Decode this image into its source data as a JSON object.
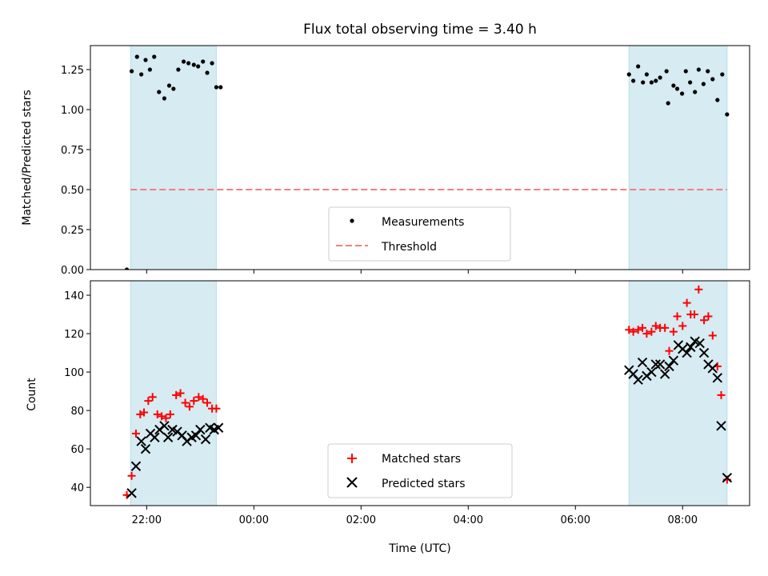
{
  "chart_data": {
    "title": "Flux total observing time = 3.40 h",
    "x_axis": {
      "label": "Time (UTC)",
      "ticks": [
        {
          "value": 22,
          "label": "22:00"
        },
        {
          "value": 24,
          "label": "00:00"
        },
        {
          "value": 26,
          "label": "02:00"
        },
        {
          "value": 28,
          "label": "04:00"
        },
        {
          "value": 30,
          "label": "06:00"
        },
        {
          "value": 32,
          "label": "08:00"
        }
      ],
      "xlim": [
        20.95,
        33.25
      ],
      "unit": "hours after 00:00 UTC of first day"
    },
    "shaded_intervals": [
      [
        21.7,
        23.3
      ],
      [
        31.0,
        32.83
      ]
    ],
    "shade_color": "#add8e6",
    "panels": [
      {
        "type": "scatter",
        "ylabel": "Matched/Predicted stars",
        "ylim": [
          0,
          1.4
        ],
        "yticks": [
          {
            "value": 0,
            "label": "0.00"
          },
          {
            "value": 0.25,
            "label": "0.25"
          },
          {
            "value": 0.5,
            "label": "0.50"
          },
          {
            "value": 0.75,
            "label": "0.75"
          },
          {
            "value": 1.0,
            "label": "1.00"
          },
          {
            "value": 1.25,
            "label": "1.25"
          }
        ],
        "legend": {
          "placement": "lower center",
          "entries": [
            "Measurements",
            "Threshold"
          ]
        },
        "series": [
          {
            "name": "Measurements",
            "marker": "dot",
            "color": "#000000",
            "points": [
              [
                21.63,
                0.0
              ],
              [
                21.72,
                1.24
              ],
              [
                21.82,
                1.33
              ],
              [
                21.9,
                1.22
              ],
              [
                21.98,
                1.31
              ],
              [
                22.06,
                1.25
              ],
              [
                22.14,
                1.33
              ],
              [
                22.23,
                1.11
              ],
              [
                22.33,
                1.07
              ],
              [
                22.42,
                1.15
              ],
              [
                22.5,
                1.13
              ],
              [
                22.59,
                1.25
              ],
              [
                22.69,
                1.3
              ],
              [
                22.78,
                1.29
              ],
              [
                22.88,
                1.28
              ],
              [
                22.96,
                1.27
              ],
              [
                23.05,
                1.3
              ],
              [
                23.13,
                1.23
              ],
              [
                23.22,
                1.29
              ],
              [
                23.3,
                1.14
              ],
              [
                23.38,
                1.14
              ],
              [
                31.0,
                1.22
              ],
              [
                31.08,
                1.18
              ],
              [
                31.17,
                1.27
              ],
              [
                31.26,
                1.17
              ],
              [
                31.33,
                1.22
              ],
              [
                31.42,
                1.17
              ],
              [
                31.5,
                1.18
              ],
              [
                31.58,
                1.2
              ],
              [
                31.7,
                1.24
              ],
              [
                31.73,
                1.04
              ],
              [
                31.83,
                1.15
              ],
              [
                31.9,
                1.13
              ],
              [
                31.99,
                1.1
              ],
              [
                32.06,
                1.24
              ],
              [
                32.14,
                1.17
              ],
              [
                32.23,
                1.11
              ],
              [
                32.3,
                1.25
              ],
              [
                32.39,
                1.16
              ],
              [
                32.47,
                1.24
              ],
              [
                32.56,
                1.19
              ],
              [
                32.65,
                1.06
              ],
              [
                32.74,
                1.22
              ],
              [
                32.83,
                0.97
              ]
            ]
          },
          {
            "name": "Threshold",
            "marker": "dashed-line",
            "color": "#f08080",
            "x_range": [
              21.7,
              32.83
            ],
            "y": 0.5
          }
        ]
      },
      {
        "type": "scatter",
        "ylabel": "Count",
        "ylim": [
          30.5,
          147.5
        ],
        "yticks": [
          {
            "value": 40,
            "label": "40"
          },
          {
            "value": 60,
            "label": "60"
          },
          {
            "value": 80,
            "label": "80"
          },
          {
            "value": 100,
            "label": "100"
          },
          {
            "value": 120,
            "label": "120"
          },
          {
            "value": 140,
            "label": "140"
          }
        ],
        "legend": {
          "placement": "lower center",
          "entries": [
            "Matched stars",
            "Predicted stars"
          ]
        },
        "series": [
          {
            "name": "Matched stars",
            "marker": "plus",
            "color": "#ff0000",
            "points": [
              [
                21.63,
                36
              ],
              [
                21.72,
                46
              ],
              [
                21.8,
                68
              ],
              [
                21.88,
                78
              ],
              [
                21.95,
                79
              ],
              [
                22.03,
                85
              ],
              [
                22.11,
                87
              ],
              [
                22.2,
                78
              ],
              [
                22.28,
                77
              ],
              [
                22.36,
                76
              ],
              [
                22.44,
                78
              ],
              [
                22.55,
                88
              ],
              [
                22.63,
                89
              ],
              [
                22.72,
                84
              ],
              [
                22.8,
                82
              ],
              [
                22.88,
                85
              ],
              [
                22.97,
                87
              ],
              [
                23.05,
                86
              ],
              [
                23.13,
                84
              ],
              [
                23.22,
                81
              ],
              [
                23.3,
                81
              ],
              [
                31.0,
                122
              ],
              [
                31.08,
                121
              ],
              [
                31.17,
                122
              ],
              [
                31.25,
                123
              ],
              [
                31.33,
                120
              ],
              [
                31.42,
                121
              ],
              [
                31.5,
                124
              ],
              [
                31.58,
                123
              ],
              [
                31.67,
                123
              ],
              [
                31.75,
                111
              ],
              [
                31.83,
                121
              ],
              [
                31.9,
                129
              ],
              [
                32.0,
                124
              ],
              [
                32.08,
                136
              ],
              [
                32.15,
                130
              ],
              [
                32.22,
                130
              ],
              [
                32.3,
                143
              ],
              [
                32.4,
                127
              ],
              [
                32.48,
                129
              ],
              [
                32.56,
                119
              ],
              [
                32.65,
                103
              ],
              [
                32.72,
                88
              ],
              [
                32.83,
                44
              ]
            ]
          },
          {
            "name": "Predicted stars",
            "marker": "x",
            "color": "#000000",
            "points": [
              [
                21.72,
                37
              ],
              [
                21.8,
                51
              ],
              [
                21.9,
                64
              ],
              [
                21.98,
                60
              ],
              [
                22.07,
                68
              ],
              [
                22.15,
                66
              ],
              [
                22.24,
                70
              ],
              [
                22.33,
                72
              ],
              [
                22.4,
                66
              ],
              [
                22.48,
                70
              ],
              [
                22.57,
                69
              ],
              [
                22.66,
                67
              ],
              [
                22.75,
                64
              ],
              [
                22.84,
                66
              ],
              [
                22.92,
                67
              ],
              [
                23.0,
                70
              ],
              [
                23.1,
                65
              ],
              [
                23.18,
                71
              ],
              [
                23.26,
                70
              ],
              [
                23.34,
                71
              ],
              [
                31.0,
                101
              ],
              [
                31.08,
                99
              ],
              [
                31.17,
                96
              ],
              [
                31.25,
                105
              ],
              [
                31.33,
                98
              ],
              [
                31.42,
                100
              ],
              [
                31.5,
                104
              ],
              [
                31.58,
                104
              ],
              [
                31.67,
                99
              ],
              [
                31.75,
                103
              ],
              [
                31.83,
                106
              ],
              [
                31.92,
                114
              ],
              [
                32.0,
                112
              ],
              [
                32.08,
                110
              ],
              [
                32.15,
                113
              ],
              [
                32.23,
                116
              ],
              [
                32.32,
                115
              ],
              [
                32.4,
                110
              ],
              [
                32.48,
                104
              ],
              [
                32.56,
                102
              ],
              [
                32.65,
                97
              ],
              [
                32.72,
                72
              ],
              [
                32.83,
                45
              ]
            ]
          }
        ]
      }
    ]
  }
}
